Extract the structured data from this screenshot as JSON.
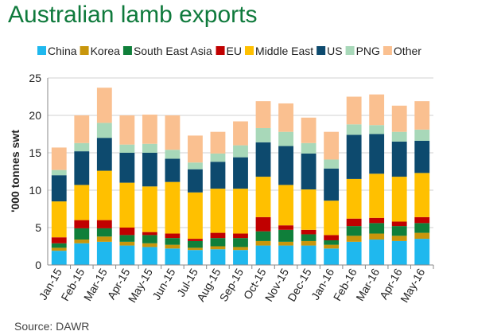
{
  "chart_data": {
    "type": "bar",
    "stacked": true,
    "title": "Australian lamb exports",
    "ylabel": "'000 tonnes swt",
    "xlabel": "",
    "source": "Source: DAWR",
    "ylim": [
      0,
      25
    ],
    "yticks": [
      0,
      5,
      10,
      15,
      20,
      25
    ],
    "grid": true,
    "legend_position": "top",
    "categories": [
      "Jan-15",
      "Feb-15",
      "Mar-15",
      "Apr-15",
      "May-15",
      "Jun-15",
      "Jul-15",
      "Aug-15",
      "Sep-15",
      "Oct-15",
      "Nov-15",
      "Dec-15",
      "Jan-16",
      "Feb-16",
      "Mar-16",
      "Apr-16",
      "May-16"
    ],
    "series": [
      {
        "name": "China",
        "color": "#1fb8ee",
        "values": [
          1.9,
          2.9,
          3.1,
          2.6,
          2.4,
          2.2,
          2.0,
          2.1,
          2.0,
          2.6,
          2.6,
          2.6,
          2.2,
          3.1,
          3.4,
          3.2,
          3.5
        ]
      },
      {
        "name": "Korea",
        "color": "#c8960c",
        "values": [
          0.4,
          0.5,
          0.7,
          0.5,
          0.5,
          0.5,
          0.3,
          0.4,
          0.4,
          0.6,
          0.5,
          0.6,
          0.5,
          0.8,
          0.8,
          0.7,
          0.8
        ]
      },
      {
        "name": "South East Asia",
        "color": "#0f7f3a",
        "values": [
          0.6,
          1.5,
          1.1,
          0.9,
          1.1,
          0.9,
          0.9,
          1.1,
          1.2,
          1.3,
          1.6,
          0.9,
          0.6,
          1.3,
          1.4,
          1.3,
          1.3
        ]
      },
      {
        "name": "EU",
        "color": "#c00000",
        "values": [
          0.8,
          1.1,
          1.1,
          1.0,
          0.4,
          0.6,
          0.3,
          0.7,
          0.6,
          1.9,
          0.6,
          0.6,
          0.7,
          1.0,
          0.7,
          0.6,
          0.8
        ]
      },
      {
        "name": "Middle East",
        "color": "#ffc000",
        "values": [
          4.8,
          4.7,
          6.6,
          6.0,
          6.1,
          6.9,
          6.2,
          5.9,
          6.0,
          5.4,
          5.4,
          5.4,
          4.6,
          5.3,
          5.9,
          6.0,
          5.9
        ]
      },
      {
        "name": "US",
        "color": "#0d4a6e",
        "values": [
          3.5,
          4.5,
          4.4,
          4.0,
          4.5,
          3.1,
          3.1,
          3.6,
          4.2,
          4.6,
          5.2,
          4.8,
          4.3,
          5.9,
          5.3,
          4.7,
          4.3
        ]
      },
      {
        "name": "PNG",
        "color": "#a8d8b9",
        "values": [
          0.7,
          1.1,
          2.0,
          1.1,
          1.2,
          1.2,
          0.9,
          1.1,
          1.6,
          1.9,
          1.9,
          1.4,
          1.2,
          1.4,
          1.2,
          1.3,
          1.5
        ]
      },
      {
        "name": "Other",
        "color": "#fac090",
        "values": [
          3.0,
          3.7,
          4.7,
          3.9,
          3.9,
          4.6,
          3.6,
          2.9,
          3.2,
          3.6,
          3.8,
          3.4,
          3.7,
          3.7,
          4.1,
          3.5,
          3.8
        ]
      }
    ]
  }
}
